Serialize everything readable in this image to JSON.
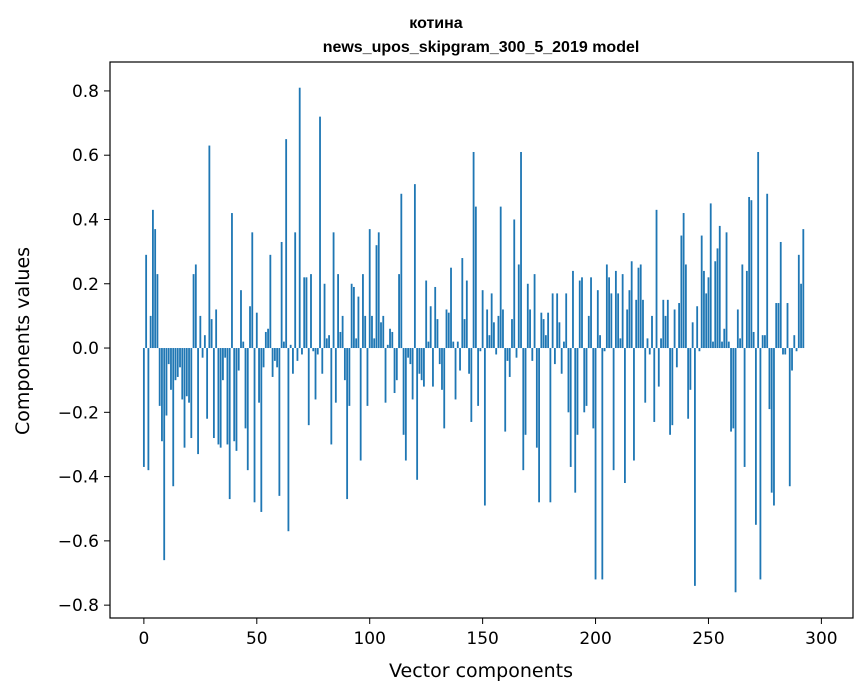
{
  "chart_data": {
    "type": "bar",
    "title_line1": "котина",
    "title_line2": "news_upos_skipgram_300_5_2019 model",
    "xlabel": "Vector components",
    "ylabel": "Components values",
    "xlim": [
      -15,
      314
    ],
    "ylim": [
      -0.84,
      0.89
    ],
    "xticks": [
      0,
      50,
      100,
      150,
      200,
      250,
      300
    ],
    "yticks": [
      -0.8,
      -0.6,
      -0.4,
      -0.2,
      0.0,
      0.2,
      0.4,
      0.6,
      0.8
    ],
    "ytick_labels": [
      "−0.8",
      "−0.6",
      "−0.4",
      "−0.2",
      "0.0",
      "0.2",
      "0.4",
      "0.6",
      "0.8"
    ],
    "bar_color": "#1f77b4",
    "values": [
      -0.37,
      0.29,
      -0.38,
      0.1,
      0.43,
      0.37,
      0.23,
      -0.18,
      -0.29,
      -0.66,
      -0.21,
      -0.05,
      -0.13,
      -0.43,
      -0.1,
      -0.09,
      -0.06,
      -0.16,
      -0.31,
      -0.15,
      -0.17,
      -0.28,
      0.23,
      0.26,
      -0.33,
      0.1,
      -0.03,
      0.04,
      -0.22,
      0.63,
      0.09,
      -0.28,
      0.12,
      -0.3,
      -0.31,
      -0.1,
      -0.03,
      -0.3,
      -0.47,
      0.42,
      -0.29,
      -0.32,
      -0.07,
      0.18,
      0.02,
      -0.25,
      -0.38,
      0.13,
      0.36,
      -0.48,
      0.11,
      -0.17,
      -0.51,
      -0.06,
      0.05,
      0.06,
      0.29,
      -0.09,
      -0.04,
      -0.06,
      -0.46,
      0.33,
      0.02,
      0.65,
      -0.57,
      0.01,
      -0.08,
      0.36,
      -0.04,
      0.81,
      -0.02,
      0.22,
      0.22,
      -0.24,
      0.23,
      -0.01,
      -0.16,
      -0.02,
      0.72,
      -0.08,
      0.2,
      0.03,
      0.04,
      -0.3,
      0.36,
      -0.17,
      0.23,
      0.05,
      0.1,
      -0.1,
      -0.47,
      -0.18,
      0.2,
      0.19,
      0.03,
      0.16,
      -0.35,
      0.23,
      0.1,
      -0.18,
      0.37,
      0.1,
      0.03,
      0.32,
      0.36,
      0.08,
      0.1,
      -0.17,
      0.01,
      0.06,
      0.05,
      -0.14,
      -0.1,
      0.23,
      0.48,
      -0.27,
      -0.35,
      -0.03,
      -0.05,
      -0.16,
      0.51,
      -0.41,
      -0.08,
      -0.1,
      -0.12,
      0.21,
      0.02,
      0.13,
      -0.12,
      0.19,
      0.09,
      -0.05,
      -0.13,
      -0.25,
      0.12,
      0.11,
      0.25,
      0.02,
      -0.16,
      0.02,
      -0.07,
      0.28,
      0.09,
      0.21,
      -0.08,
      -0.23,
      0.61,
      0.44,
      -0.18,
      -0.01,
      0.18,
      -0.49,
      0.12,
      0.04,
      0.17,
      0.08,
      -0.02,
      0.1,
      0.44,
      0.12,
      -0.26,
      -0.04,
      -0.09,
      0.09,
      0.4,
      -0.03,
      0.26,
      0.61,
      -0.38,
      -0.27,
      0.2,
      0.12,
      -0.04,
      0.23,
      -0.31,
      -0.48,
      0.11,
      0.09,
      0.04,
      0.11,
      -0.48,
      0.17,
      -0.05,
      0.17,
      0.08,
      -0.08,
      0.02,
      0.17,
      -0.2,
      -0.37,
      0.24,
      -0.45,
      -0.27,
      0.21,
      0.22,
      -0.2,
      -0.18,
      0.1,
      0.22,
      -0.25,
      -0.72,
      0.18,
      0.04,
      -0.72,
      -0.01,
      0.26,
      0.22,
      0.17,
      -0.38,
      0.24,
      0.17,
      0.03,
      0.23,
      -0.42,
      0.12,
      0.18,
      0.27,
      -0.35,
      0.15,
      0.25,
      0.26,
      0.15,
      -0.17,
      0.03,
      -0.02,
      0.1,
      -0.23,
      0.43,
      -0.12,
      0.03,
      0.15,
      0.1,
      0.15,
      -0.27,
      -0.24,
      0.12,
      -0.06,
      0.14,
      0.35,
      0.42,
      0.26,
      -0.22,
      -0.13,
      0.08,
      -0.74,
      0.13,
      -0.01,
      0.35,
      0.24,
      0.17,
      0.22,
      0.45,
      0.02,
      0.27,
      0.31,
      0.38,
      0.02,
      0.06,
      0.36,
      0.02,
      -0.26,
      -0.25,
      -0.76,
      0.12,
      0.03,
      0.26,
      -0.37,
      0.24,
      0.47,
      0.46,
      0.05,
      -0.55,
      0.61,
      -0.72,
      0.04,
      0.04,
      0.48,
      -0.19,
      -0.45,
      -0.49,
      0.14,
      0.14,
      0.33,
      -0.02,
      -0.02,
      0.14,
      -0.43,
      -0.07,
      0.04,
      -0.01,
      0.29,
      0.2,
      0.37
    ]
  }
}
